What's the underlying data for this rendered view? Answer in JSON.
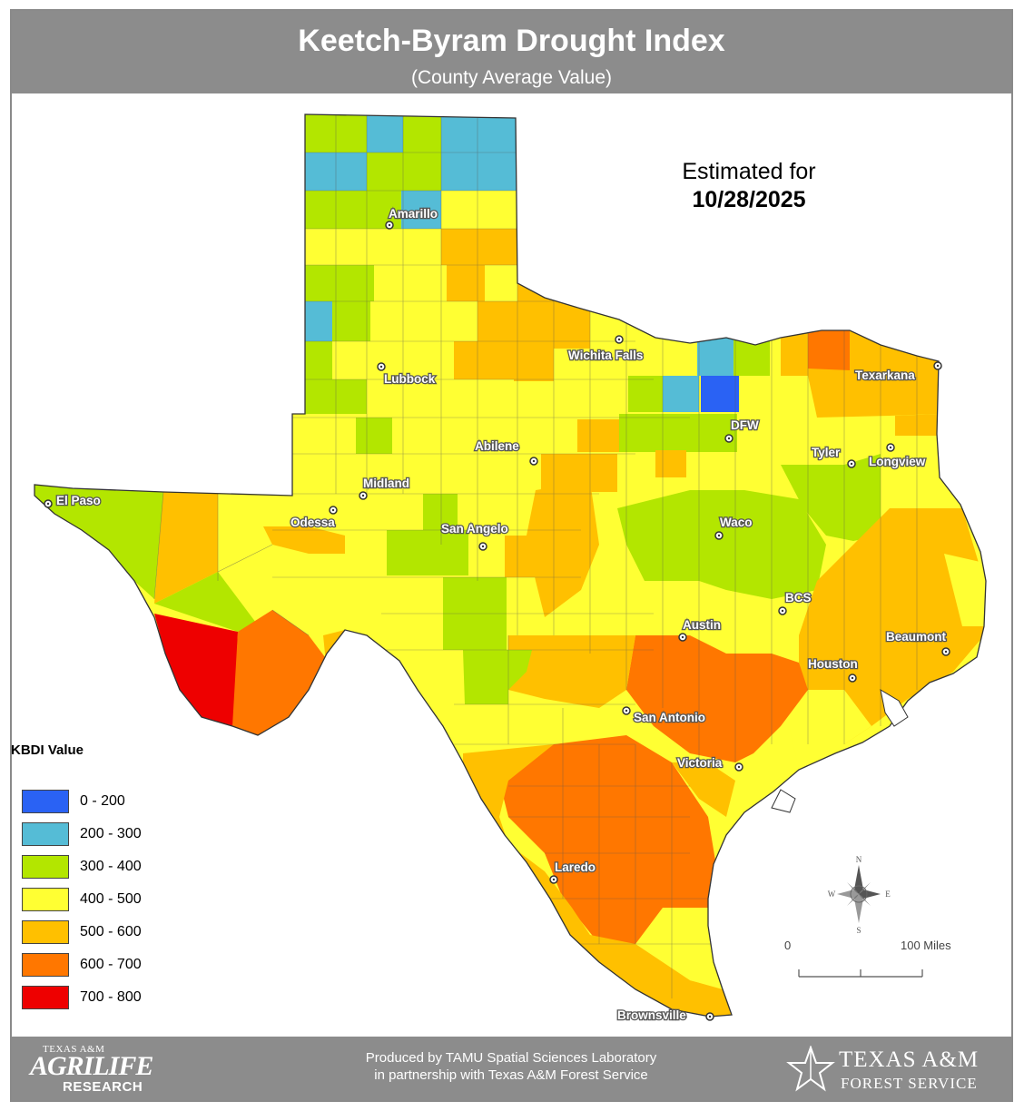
{
  "header": {
    "title": "Keetch-Byram Drought Index",
    "subtitle": "(County Average Value)"
  },
  "estimate": {
    "line1": "Estimated for",
    "date": "10/28/2025"
  },
  "legend": {
    "title": "KBDI Value",
    "items": [
      {
        "label": "0 - 200",
        "color": "#2a62f4"
      },
      {
        "label": "200 - 300",
        "color": "#55bcd6"
      },
      {
        "label": "300 - 400",
        "color": "#b3e600"
      },
      {
        "label": "400 - 500",
        "color": "#ffff33"
      },
      {
        "label": "500 - 600",
        "color": "#ffc000"
      },
      {
        "label": "600 - 700",
        "color": "#ff7700"
      },
      {
        "label": "700 - 800",
        "color": "#ee0000"
      }
    ]
  },
  "cities": [
    {
      "name": "Amarillo"
    },
    {
      "name": "Lubbock"
    },
    {
      "name": "Wichita Falls"
    },
    {
      "name": "Texarkana"
    },
    {
      "name": "DFW"
    },
    {
      "name": "Abilene"
    },
    {
      "name": "Tyler"
    },
    {
      "name": "Longview"
    },
    {
      "name": "Midland"
    },
    {
      "name": "El Paso"
    },
    {
      "name": "Odessa"
    },
    {
      "name": "San Angelo"
    },
    {
      "name": "Waco"
    },
    {
      "name": "BCS"
    },
    {
      "name": "Austin"
    },
    {
      "name": "Beaumont"
    },
    {
      "name": "Houston"
    },
    {
      "name": "San Antonio"
    },
    {
      "name": "Victoria"
    },
    {
      "name": "Laredo"
    },
    {
      "name": "Brownsville"
    }
  ],
  "compass": {
    "n": "N",
    "s": "S",
    "e": "E",
    "w": "W",
    "icon": "compass-rose-icon"
  },
  "scale": {
    "left": "0",
    "right": "100 Miles"
  },
  "footer": {
    "credit_line1": "Produced by TAMU Spatial Sciences Laboratory",
    "credit_line2": "in partnership with Texas A&M Forest Service",
    "left_logo": {
      "line1": "TEXAS A&M",
      "line2": "AGRILIFE",
      "line3": "RESEARCH"
    },
    "right_logo": {
      "line1": "TEXAS A&M",
      "line2": "FOREST SERVICE",
      "icon": "star-icon"
    }
  }
}
